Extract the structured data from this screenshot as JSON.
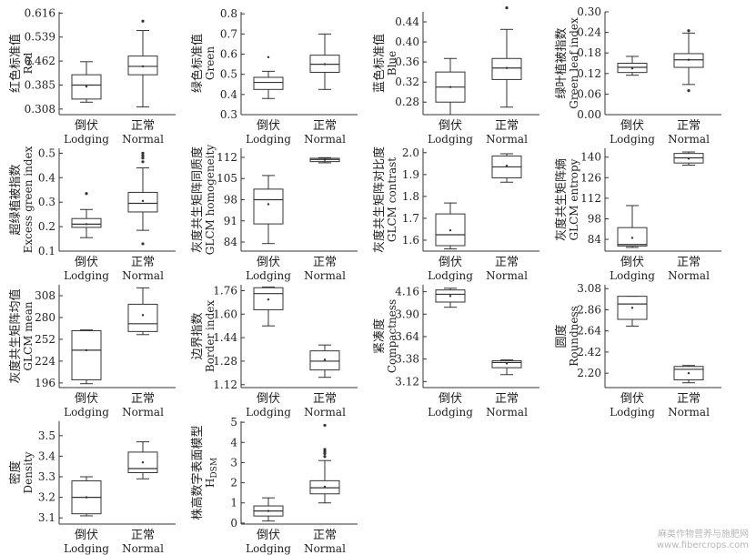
{
  "watermark": {
    "line1": "麻类作物营养与施肥网",
    "line2": "www.fibercrops.com"
  },
  "chart_data": [
    {
      "type": "box",
      "ylabel_cn": "红色标准值",
      "ylabel_en": "Red",
      "yticks": [
        "0.308",
        "0.385",
        "0.462",
        "0.539",
        "0.616"
      ],
      "ylim": [
        0.29,
        0.62
      ],
      "categories": [
        {
          "cn": "倒伏",
          "en": "Lodging"
        },
        {
          "cn": "正常",
          "en": "Normal"
        }
      ],
      "boxes": [
        {
          "whislo": 0.33,
          "q1": 0.34,
          "med": 0.385,
          "q3": 0.418,
          "whishi": 0.46,
          "mean": 0.38,
          "fliers": []
        },
        {
          "whislo": 0.315,
          "q1": 0.418,
          "med": 0.445,
          "q3": 0.478,
          "whishi": 0.56,
          "mean": 0.445,
          "fliers": [
            0.59
          ]
        }
      ]
    },
    {
      "type": "box",
      "ylabel_cn": "绿色标准值",
      "ylabel_en": "Green",
      "yticks": [
        "0.3",
        "0.4",
        "0.5",
        "0.6",
        "0.7",
        "0.8"
      ],
      "ylim": [
        0.3,
        0.81
      ],
      "categories": [
        {
          "cn": "倒伏",
          "en": "Lodging"
        },
        {
          "cn": "正常",
          "en": "Normal"
        }
      ],
      "boxes": [
        {
          "whislo": 0.38,
          "q1": 0.425,
          "med": 0.46,
          "q3": 0.485,
          "whishi": 0.515,
          "mean": 0.585,
          "fliers": []
        },
        {
          "whislo": 0.425,
          "q1": 0.51,
          "med": 0.55,
          "q3": 0.595,
          "whishi": 0.7,
          "mean": 0.55,
          "fliers": []
        }
      ]
    },
    {
      "type": "box",
      "ylabel_cn": "蓝色标准值",
      "ylabel_en": "Blue",
      "yticks": [
        "0.28",
        "0.32",
        "0.36",
        "0.40",
        "0.44"
      ],
      "ylim": [
        0.255,
        0.46
      ],
      "categories": [
        {
          "cn": "倒伏",
          "en": "Lodging"
        },
        {
          "cn": "正常",
          "en": "Normal"
        }
      ],
      "boxes": [
        {
          "whislo": 0.255,
          "q1": 0.28,
          "med": 0.31,
          "q3": 0.34,
          "whishi": 0.367,
          "mean": 0.31,
          "fliers": []
        },
        {
          "whislo": 0.27,
          "q1": 0.325,
          "med": 0.348,
          "q3": 0.367,
          "whishi": 0.425,
          "mean": 0.348,
          "fliers": [
            0.468
          ]
        }
      ]
    },
    {
      "type": "box",
      "ylabel_cn": "绿叶植被指数",
      "ylabel_en": "Green leaf index",
      "yticks": [
        "0.00",
        "0.06",
        "0.12",
        "0.18",
        "0.24",
        "0.30"
      ],
      "ylim": [
        0,
        0.3
      ],
      "categories": [
        {
          "cn": "倒伏",
          "en": "Lodging"
        },
        {
          "cn": "正常",
          "en": "Normal"
        }
      ],
      "boxes": [
        {
          "whislo": 0.115,
          "q1": 0.123,
          "med": 0.138,
          "q3": 0.15,
          "whishi": 0.17,
          "mean": 0.135,
          "fliers": []
        },
        {
          "whislo": 0.088,
          "q1": 0.138,
          "med": 0.16,
          "q3": 0.178,
          "whishi": 0.238,
          "mean": 0.16,
          "fliers": [
            0.245,
            0.07
          ]
        }
      ]
    },
    {
      "type": "box",
      "ylabel_cn": "超绿植被指数",
      "ylabel_en": "Excess green index",
      "yticks": [
        "0.1",
        "0.2",
        "0.3",
        "0.4",
        "0.5"
      ],
      "ylim": [
        0.1,
        0.52
      ],
      "categories": [
        {
          "cn": "倒伏",
          "en": "Lodging"
        },
        {
          "cn": "正常",
          "en": "Normal"
        }
      ],
      "boxes": [
        {
          "whislo": 0.155,
          "q1": 0.197,
          "med": 0.21,
          "q3": 0.233,
          "whishi": 0.27,
          "mean": 0.21,
          "fliers": [
            0.335
          ]
        },
        {
          "whislo": 0.185,
          "q1": 0.26,
          "med": 0.295,
          "q3": 0.34,
          "whishi": 0.44,
          "mean": 0.305,
          "fliers": [
            0.465,
            0.48,
            0.49,
            0.5,
            0.13
          ]
        }
      ]
    },
    {
      "type": "box",
      "ylabel_cn": "灰度共生矩阵同质度",
      "ylabel_en": "GLCM homogeneity",
      "yticks": [
        "84",
        "91",
        "98",
        "105",
        "112"
      ],
      "ylim": [
        81,
        115
      ],
      "categories": [
        {
          "cn": "倒伏",
          "en": "Lodging"
        },
        {
          "cn": "正常",
          "en": "Normal"
        }
      ],
      "boxes": [
        {
          "whislo": 83.5,
          "q1": 90,
          "med": 98,
          "q3": 101.5,
          "whishi": 106,
          "mean": 96.5,
          "fliers": []
        },
        {
          "whislo": 110.2,
          "q1": 110.6,
          "med": 111.3,
          "q3": 111.7,
          "whishi": 111.9,
          "mean": 111.2,
          "fliers": []
        }
      ]
    },
    {
      "type": "box",
      "ylabel_cn": "灰度共生矩阵对比度",
      "ylabel_en": "GLCM contrast",
      "yticks": [
        "1.6",
        "1.7",
        "1.8",
        "1.9",
        "2.0"
      ],
      "ylim": [
        1.55,
        2.02
      ],
      "categories": [
        {
          "cn": "倒伏",
          "en": "Lodging"
        },
        {
          "cn": "正常",
          "en": "Normal"
        }
      ],
      "boxes": [
        {
          "whislo": 1.56,
          "q1": 1.575,
          "med": 1.625,
          "q3": 1.72,
          "whishi": 1.77,
          "mean": 1.645,
          "fliers": []
        },
        {
          "whislo": 1.865,
          "q1": 1.885,
          "med": 1.935,
          "q3": 1.985,
          "whishi": 1.995,
          "mean": 1.94,
          "fliers": []
        }
      ]
    },
    {
      "type": "box",
      "ylabel_cn": "灰度共生矩阵熵",
      "ylabel_en": "GLCM entropy",
      "yticks": [
        "84",
        "98",
        "112",
        "126",
        "140"
      ],
      "ylim": [
        76,
        146
      ],
      "categories": [
        {
          "cn": "倒伏",
          "en": "Lodging"
        },
        {
          "cn": "正常",
          "en": "Normal"
        }
      ],
      "boxes": [
        {
          "whislo": 78.5,
          "q1": 79.5,
          "med": 80.5,
          "q3": 92,
          "whishi": 107,
          "mean": 85,
          "fliers": []
        },
        {
          "whislo": 134.5,
          "q1": 136,
          "med": 139.5,
          "q3": 142.5,
          "whishi": 143.5,
          "mean": 139,
          "fliers": []
        }
      ]
    },
    {
      "type": "box",
      "ylabel_cn": "灰度共生矩阵均值",
      "ylabel_en": "GLCM mean",
      "yticks": [
        "196",
        "224",
        "252",
        "280",
        "308"
      ],
      "ylim": [
        190,
        322
      ],
      "categories": [
        {
          "cn": "倒伏",
          "en": "Lodging"
        },
        {
          "cn": "正常",
          "en": "Normal"
        }
      ],
      "boxes": [
        {
          "whislo": 195,
          "q1": 200,
          "med": 238,
          "q3": 263,
          "whishi": 264,
          "mean": 238,
          "fliers": []
        },
        {
          "whislo": 258,
          "q1": 262,
          "med": 272,
          "q3": 297,
          "whishi": 318,
          "mean": 283,
          "fliers": []
        }
      ]
    },
    {
      "type": "box",
      "ylabel_cn": "边界指数",
      "ylabel_en": "Border index",
      "yticks": [
        "1.12",
        "1.28",
        "1.44",
        "1.60",
        "1.76"
      ],
      "ylim": [
        1.1,
        1.8
      ],
      "categories": [
        {
          "cn": "倒伏",
          "en": "Lodging"
        },
        {
          "cn": "正常",
          "en": "Normal"
        }
      ],
      "boxes": [
        {
          "whislo": 1.52,
          "q1": 1.63,
          "med": 1.74,
          "q3": 1.78,
          "whishi": 1.785,
          "mean": 1.7,
          "fliers": []
        },
        {
          "whislo": 1.17,
          "q1": 1.22,
          "med": 1.28,
          "q3": 1.35,
          "whishi": 1.39,
          "mean": 1.29,
          "fliers": []
        }
      ]
    },
    {
      "type": "box",
      "ylabel_cn": "紧凑度",
      "ylabel_en": "Compactness",
      "yticks": [
        "3.12",
        "3.38",
        "3.64",
        "3.90",
        "4.16"
      ],
      "ylim": [
        3.05,
        4.24
      ],
      "categories": [
        {
          "cn": "倒伏",
          "en": "Lodging"
        },
        {
          "cn": "正常",
          "en": "Normal"
        }
      ],
      "boxes": [
        {
          "whislo": 3.98,
          "q1": 4.04,
          "med": 4.13,
          "q3": 4.18,
          "whishi": 4.2,
          "mean": 4.11,
          "fliers": []
        },
        {
          "whislo": 3.2,
          "q1": 3.28,
          "med": 3.34,
          "q3": 3.36,
          "whishi": 3.37,
          "mean": 3.33,
          "fliers": []
        }
      ]
    },
    {
      "type": "box",
      "ylabel_cn": "圆度",
      "ylabel_en": "Roundness",
      "yticks": [
        "2.20",
        "2.42",
        "2.64",
        "2.86",
        "3.08"
      ],
      "ylim": [
        2.05,
        3.12
      ],
      "categories": [
        {
          "cn": "倒伏",
          "en": "Lodging"
        },
        {
          "cn": "正常",
          "en": "Normal"
        }
      ],
      "boxes": [
        {
          "whislo": 2.69,
          "q1": 2.76,
          "med": 2.92,
          "q3": 3.0,
          "whishi": 3.0,
          "mean": 2.88,
          "fliers": []
        },
        {
          "whislo": 2.1,
          "q1": 2.13,
          "med": 2.24,
          "q3": 2.27,
          "whishi": 2.28,
          "mean": 2.2,
          "fliers": []
        }
      ]
    },
    {
      "type": "box",
      "ylabel_cn": "密度",
      "ylabel_en": "Density",
      "yticks": [
        "3.1",
        "3.2",
        "3.3",
        "3.4",
        "3.5"
      ],
      "ylim": [
        3.07,
        3.57
      ],
      "categories": [
        {
          "cn": "倒伏",
          "en": "Lodging"
        },
        {
          "cn": "正常",
          "en": "Normal"
        }
      ],
      "boxes": [
        {
          "whislo": 3.11,
          "q1": 3.12,
          "med": 3.2,
          "q3": 3.28,
          "whishi": 3.3,
          "mean": 3.2,
          "fliers": []
        },
        {
          "whislo": 3.29,
          "q1": 3.32,
          "med": 3.34,
          "q3": 3.42,
          "whishi": 3.47,
          "mean": 3.37,
          "fliers": []
        }
      ]
    },
    {
      "type": "box",
      "ylabel_cn": "株高数字表面模型",
      "ylabel_en": "H",
      "ylabel_sub": "DSM",
      "yticks": [
        "0",
        "1",
        "2",
        "3",
        "4",
        "5"
      ],
      "ylim": [
        -0.05,
        5.05
      ],
      "categories": [
        {
          "cn": "倒伏",
          "en": "Lodging"
        },
        {
          "cn": "正常",
          "en": "Normal"
        }
      ],
      "boxes": [
        {
          "whislo": 0.1,
          "q1": 0.35,
          "med": 0.6,
          "q3": 0.85,
          "whishi": 1.25,
          "mean": 0.6,
          "fliers": []
        },
        {
          "whislo": 1.0,
          "q1": 1.45,
          "med": 1.75,
          "q3": 2.1,
          "whishi": 3.1,
          "mean": 1.8,
          "fliers": [
            3.3,
            3.45,
            3.55,
            3.65,
            4.85
          ]
        }
      ]
    }
  ]
}
